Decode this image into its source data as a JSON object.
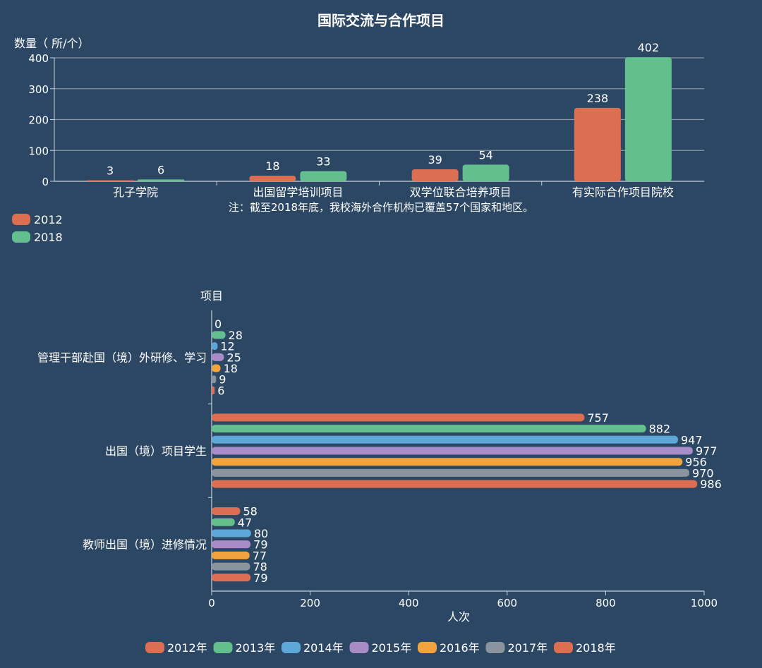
{
  "colors": {
    "background": "#2c4763",
    "axis": "#c9d3dd",
    "grid": "#8797a7",
    "text": "#ffffff"
  },
  "chart_data": [
    {
      "type": "bar",
      "title": "国际交流与合作项目",
      "ylabel": "数量（ 所/个）",
      "note": "注：截至2018年底，我校海外合作机构已覆盖57个国家和地区。",
      "categories": [
        "孔子学院",
        "出国留学培训项目",
        "双学位联合培养项目",
        "有实际合作项目院校"
      ],
      "ylim": [
        0,
        400
      ],
      "yticks": [
        0,
        100,
        200,
        300,
        400
      ],
      "grid": true,
      "legend_position": "left",
      "series": [
        {
          "name": "2012",
          "color": "#dc6e52",
          "values": [
            3,
            18,
            39,
            238
          ]
        },
        {
          "name": "2018",
          "color": "#63c08e",
          "values": [
            6,
            33,
            54,
            402
          ]
        }
      ]
    },
    {
      "type": "bar",
      "orientation": "horizontal",
      "xlabel": "人次",
      "ylabel": "项目",
      "categories": [
        "管理干部赴国（境）外研修、学习",
        "出国（境）项目学生",
        "教师出国（境）进修情况"
      ],
      "xlim": [
        0,
        1000
      ],
      "xticks": [
        0,
        200,
        400,
        600,
        800,
        1000
      ],
      "grid": false,
      "legend_position": "bottom",
      "series": [
        {
          "name": "2012年",
          "color": "#dc6e52",
          "values": [
            0,
            757,
            58
          ]
        },
        {
          "name": "2013年",
          "color": "#63c08e",
          "values": [
            28,
            882,
            47
          ]
        },
        {
          "name": "2014年",
          "color": "#5ea7d9",
          "values": [
            12,
            947,
            80
          ]
        },
        {
          "name": "2015年",
          "color": "#a98bc8",
          "values": [
            25,
            977,
            79
          ]
        },
        {
          "name": "2016年",
          "color": "#f0a33e",
          "values": [
            18,
            956,
            77
          ]
        },
        {
          "name": "2017年",
          "color": "#8a949e",
          "values": [
            9,
            970,
            78
          ]
        },
        {
          "name": "2018年",
          "color": "#dc6e52",
          "values": [
            6,
            986,
            79
          ]
        }
      ]
    }
  ]
}
